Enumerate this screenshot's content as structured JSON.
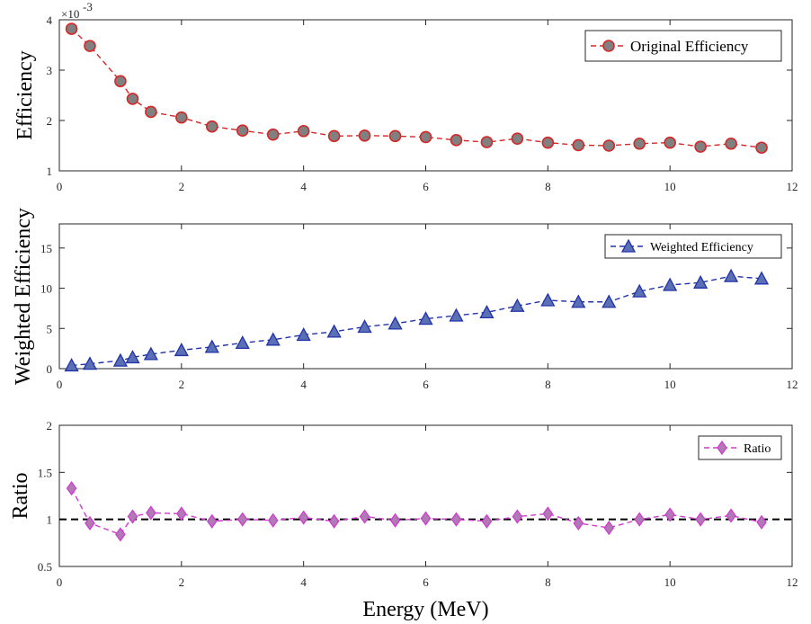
{
  "chart_data": [
    {
      "type": "line",
      "ylabel": "Efficiency",
      "xlabel": "",
      "exponent_label": "×10",
      "exponent_power": "-3",
      "xlim": [
        0,
        12
      ],
      "ylim": [
        1,
        4
      ],
      "xticks": [
        0,
        2,
        4,
        6,
        8,
        10,
        12
      ],
      "yticks": [
        1,
        2,
        3,
        4
      ],
      "legend": "top-right",
      "series": [
        {
          "name": "Original Efficiency",
          "color": "#d62728",
          "marker": "circle",
          "marker_fill": "#808080",
          "x": [
            0.2,
            0.5,
            1.0,
            1.2,
            1.5,
            2.0,
            2.5,
            3.0,
            3.5,
            4.0,
            4.5,
            5.0,
            5.5,
            6.0,
            6.5,
            7.0,
            7.5,
            8.0,
            8.5,
            9.0,
            9.5,
            10.0,
            10.5,
            11.0,
            11.5
          ],
          "y": [
            3.82,
            3.48,
            2.78,
            2.43,
            2.17,
            2.06,
            1.88,
            1.8,
            1.72,
            1.79,
            1.69,
            1.7,
            1.69,
            1.67,
            1.61,
            1.57,
            1.64,
            1.56,
            1.51,
            1.5,
            1.54,
            1.56,
            1.48,
            1.54,
            1.46
          ]
        }
      ]
    },
    {
      "type": "line",
      "ylabel": "Weighted Efficiency",
      "xlabel": "",
      "xlim": [
        0,
        12
      ],
      "ylim": [
        0,
        18
      ],
      "xticks": [
        0,
        2,
        4,
        6,
        8,
        10,
        12
      ],
      "yticks": [
        0,
        5,
        10,
        15
      ],
      "legend": "top-right",
      "series": [
        {
          "name": "Weighted Efficiency",
          "color": "#2233aa",
          "marker": "triangle",
          "marker_fill": "#5b6fb5",
          "x": [
            0.2,
            0.5,
            1.0,
            1.2,
            1.5,
            2.0,
            2.5,
            3.0,
            3.5,
            4.0,
            4.5,
            5.0,
            5.5,
            6.0,
            6.5,
            7.0,
            7.5,
            8.0,
            8.5,
            9.0,
            9.5,
            10.0,
            10.5,
            11.0,
            11.5
          ],
          "y": [
            0.4,
            0.6,
            1.0,
            1.4,
            1.8,
            2.3,
            2.7,
            3.2,
            3.6,
            4.2,
            4.6,
            5.2,
            5.6,
            6.2,
            6.6,
            7.0,
            7.8,
            8.5,
            8.3,
            8.3,
            9.6,
            10.4,
            10.7,
            11.5,
            11.2
          ]
        }
      ]
    },
    {
      "type": "line",
      "ylabel": "Ratio",
      "xlabel": "Energy (MeV)",
      "xlim": [
        0,
        12
      ],
      "ylim": [
        0.5,
        2
      ],
      "xticks": [
        0,
        2,
        4,
        6,
        8,
        10,
        12
      ],
      "yticks": [
        0.5,
        1,
        1.5,
        2
      ],
      "yticklabels": [
        "0.5",
        "1",
        "1.5",
        "2"
      ],
      "legend": "top-right",
      "reference_line": 1,
      "series": [
        {
          "name": "Ratio",
          "color": "#d03cd0",
          "marker": "diamond",
          "marker_fill": "#b07ab5",
          "x": [
            0.2,
            0.5,
            1.0,
            1.2,
            1.5,
            2.0,
            2.5,
            3.0,
            3.5,
            4.0,
            4.5,
            5.0,
            5.5,
            6.0,
            6.5,
            7.0,
            7.5,
            8.0,
            8.5,
            9.0,
            9.5,
            10.0,
            10.5,
            11.0,
            11.5
          ],
          "y": [
            1.33,
            0.96,
            0.84,
            1.03,
            1.07,
            1.06,
            0.98,
            1.0,
            0.99,
            1.02,
            0.98,
            1.03,
            0.99,
            1.01,
            1.0,
            0.98,
            1.03,
            1.06,
            0.96,
            0.91,
            1.0,
            1.05,
            1.0,
            1.04,
            0.97
          ]
        }
      ]
    }
  ]
}
